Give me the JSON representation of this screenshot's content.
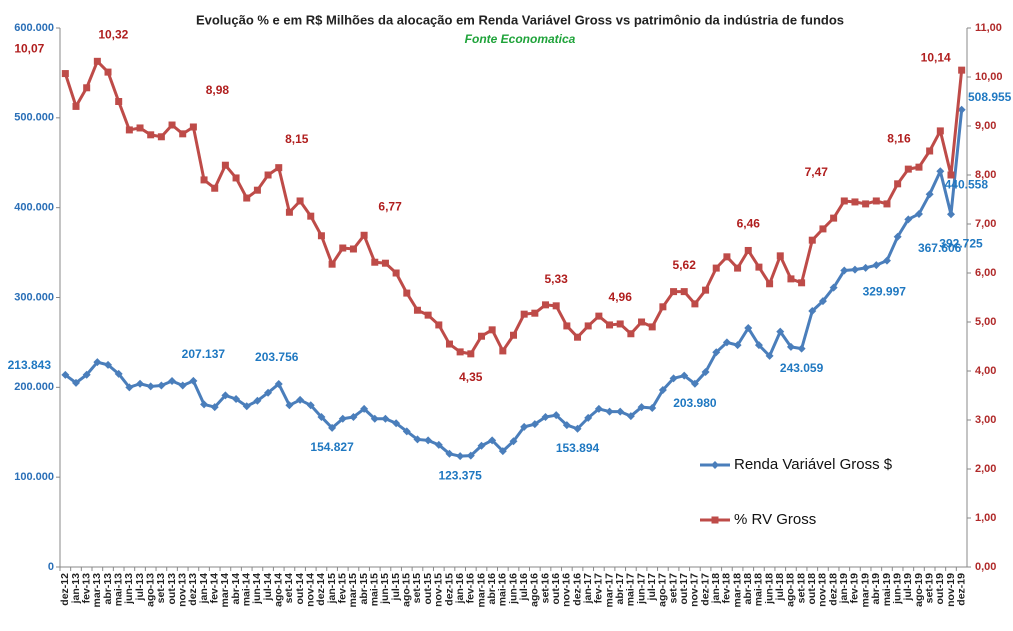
{
  "chart_data": {
    "type": "line",
    "title": "Evolução % e em R$ Milhões da alocação  em Renda Variável Gross vs patrimônio da indústria de fundos",
    "subtitle": "Fonte Economatica",
    "categories": [
      "dez-12",
      "jan-13",
      "fev-13",
      "mar-13",
      "abr-13",
      "mai-13",
      "jun-13",
      "jul-13",
      "ago-13",
      "set-13",
      "out-13",
      "nov-13",
      "dez-13",
      "jan-14",
      "fev-14",
      "mar-14",
      "abr-14",
      "mai-14",
      "jun-14",
      "jul-14",
      "ago-14",
      "set-14",
      "out-14",
      "nov-14",
      "dez-14",
      "jan-15",
      "fev-15",
      "mar-15",
      "abr-15",
      "mai-15",
      "jun-15",
      "jul-15",
      "ago-15",
      "set-15",
      "out-15",
      "nov-15",
      "dez-15",
      "jan-16",
      "fev-16",
      "mar-16",
      "abr-16",
      "mai-16",
      "jun-16",
      "jul-16",
      "ago-16",
      "set-16",
      "out-16",
      "nov-16",
      "dez-16",
      "jan-17",
      "fev-17",
      "mar-17",
      "abr-17",
      "mai-17",
      "jun-17",
      "jul-17",
      "ago-17",
      "set-17",
      "out-17",
      "nov-17",
      "dez-17",
      "jan-18",
      "fev-18",
      "mar-18",
      "abr-18",
      "mai-18",
      "jun-18",
      "jul-18",
      "ago-18",
      "set-18",
      "out-18",
      "nov-18",
      "dez-18",
      "jan-19",
      "fev-19",
      "mar-19",
      "abr-19",
      "mai-19",
      "jun-19",
      "jul-19",
      "ago-19",
      "set-19",
      "out-19",
      "nov-19",
      "dez-19"
    ],
    "series": [
      {
        "name": "Renda Variável Gross $",
        "color": "#4a7ebb",
        "axis": "y",
        "marker": "diamond",
        "values": [
          213843,
          205000,
          214000,
          228000,
          225000,
          215000,
          200000,
          204000,
          201000,
          202000,
          207000,
          202000,
          207137,
          181000,
          178000,
          191000,
          187000,
          179000,
          185000,
          194000,
          203756,
          180000,
          186000,
          180000,
          167000,
          154827,
          165000,
          167000,
          176000,
          165000,
          165000,
          160000,
          151000,
          142000,
          141000,
          136000,
          126000,
          123375,
          124000,
          135000,
          141000,
          129000,
          140000,
          156000,
          159000,
          167000,
          169000,
          158000,
          153894,
          166000,
          176000,
          173000,
          173000,
          168000,
          178000,
          177000,
          197000,
          210000,
          213000,
          203980,
          217000,
          239000,
          250000,
          247000,
          266000,
          247000,
          235000,
          262000,
          245000,
          243059,
          285000,
          296000,
          311000,
          329997,
          331000,
          333000,
          336000,
          341000,
          367606,
          387000,
          393000,
          415000,
          440558,
          392725,
          508955
        ],
        "value_labels": [
          "213.843",
          null,
          null,
          null,
          null,
          null,
          null,
          null,
          null,
          null,
          null,
          null,
          "207.137",
          null,
          null,
          null,
          null,
          null,
          null,
          null,
          "203.756",
          null,
          null,
          null,
          null,
          "154.827",
          null,
          null,
          null,
          null,
          null,
          null,
          null,
          null,
          null,
          null,
          null,
          "123.375",
          null,
          null,
          null,
          null,
          null,
          null,
          null,
          null,
          null,
          null,
          "153.894",
          null,
          null,
          null,
          null,
          null,
          null,
          null,
          null,
          null,
          null,
          "203.980",
          null,
          null,
          null,
          null,
          null,
          null,
          null,
          null,
          null,
          "243.059",
          null,
          null,
          null,
          "329.997",
          null,
          null,
          null,
          null,
          "367.606",
          null,
          null,
          null,
          "440.558",
          "392.725",
          "508.955"
        ]
      },
      {
        "name": "% RV Gross",
        "color": "#be4b48",
        "axis": "y2",
        "marker": "square",
        "values": [
          10.07,
          9.4,
          9.78,
          10.32,
          10.1,
          9.5,
          8.92,
          8.96,
          8.82,
          8.78,
          9.02,
          8.84,
          8.98,
          7.9,
          7.73,
          8.2,
          7.94,
          7.53,
          7.69,
          8.0,
          8.15,
          7.24,
          7.47,
          7.16,
          6.76,
          6.18,
          6.51,
          6.49,
          6.77,
          6.22,
          6.2,
          6.0,
          5.59,
          5.24,
          5.14,
          4.94,
          4.55,
          4.39,
          4.35,
          4.71,
          4.84,
          4.41,
          4.73,
          5.16,
          5.18,
          5.35,
          5.33,
          4.92,
          4.69,
          4.92,
          5.12,
          4.94,
          4.96,
          4.76,
          5.0,
          4.9,
          5.31,
          5.62,
          5.62,
          5.37,
          5.65,
          6.1,
          6.33,
          6.1,
          6.46,
          6.12,
          5.78,
          6.35,
          5.88,
          5.8,
          6.67,
          6.9,
          7.12,
          7.47,
          7.45,
          7.41,
          7.47,
          7.41,
          7.82,
          8.12,
          8.16,
          8.49,
          8.9,
          8.0,
          10.14
        ],
        "value_labels": [
          "10,07",
          null,
          null,
          "10,32",
          null,
          null,
          null,
          null,
          null,
          null,
          null,
          null,
          "8,98",
          null,
          null,
          null,
          null,
          null,
          null,
          null,
          "8,15",
          null,
          null,
          null,
          null,
          null,
          null,
          null,
          "6,77",
          null,
          null,
          null,
          null,
          null,
          null,
          null,
          null,
          null,
          "4,35",
          null,
          null,
          null,
          null,
          null,
          null,
          null,
          "5,33",
          null,
          null,
          null,
          null,
          null,
          "4,96",
          null,
          null,
          null,
          null,
          null,
          "5,62",
          null,
          null,
          null,
          null,
          null,
          "6,46",
          null,
          null,
          null,
          null,
          null,
          null,
          null,
          null,
          "7,47",
          null,
          null,
          null,
          null,
          null,
          null,
          "8,16",
          null,
          null,
          null,
          "10,14"
        ]
      }
    ],
    "ylim": [
      0,
      600000
    ],
    "yticks": [
      0,
      {
        "value": 100000,
        "label": "100.000"
      },
      {
        "value": 200000,
        "label": "200.000"
      },
      {
        "value": 300000,
        "label": "300.000"
      },
      {
        "value": 400000,
        "label": "400.000"
      },
      {
        "value": 500000,
        "label": "500.000"
      },
      {
        "value": 600000,
        "label": "600.000"
      }
    ],
    "y2lim": [
      0,
      11
    ],
    "y2ticks": [
      {
        "value": 0,
        "label": "0,00"
      },
      {
        "value": 1,
        "label": "1,00"
      },
      {
        "value": 2,
        "label": "2,00"
      },
      {
        "value": 3,
        "label": "3,00"
      },
      {
        "value": 4,
        "label": "4,00"
      },
      {
        "value": 5,
        "label": "5,00"
      },
      {
        "value": 6,
        "label": "6,00"
      },
      {
        "value": 7,
        "label": "7,00"
      },
      {
        "value": 8,
        "label": "8,00"
      },
      {
        "value": 9,
        "label": "9,00"
      },
      {
        "value": 10,
        "label": "10,00"
      },
      {
        "value": 11,
        "label": "11,00"
      }
    ],
    "grid": false,
    "legend": "right"
  }
}
